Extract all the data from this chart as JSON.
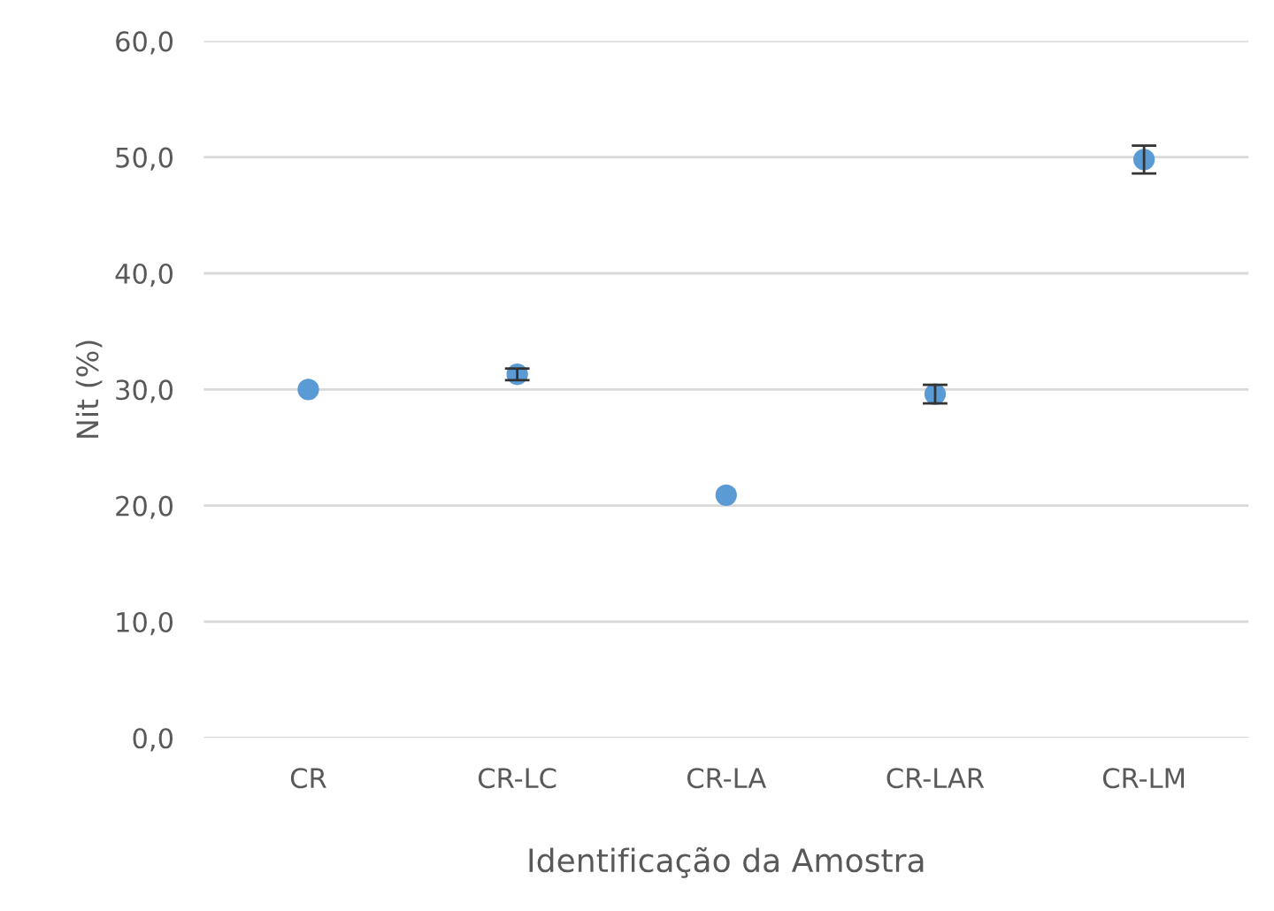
{
  "chart_data": {
    "type": "scatter",
    "xlabel": "Identificação da Amostra",
    "ylabel": "Nit (%)",
    "categories": [
      "CR",
      "CR-LC",
      "CR-LA",
      "CR-LAR",
      "CR-LM"
    ],
    "series": [
      {
        "color": "#5b9bd5",
        "values": [
          30.0,
          31.3,
          20.9,
          29.6,
          49.8
        ],
        "errors": [
          null,
          0.5,
          null,
          0.8,
          1.2
        ]
      }
    ],
    "ylim": [
      0,
      60
    ],
    "yticks": [
      {
        "value": 0,
        "label": "0,0"
      },
      {
        "value": 10,
        "label": "10,0"
      },
      {
        "value": 20,
        "label": "20,0"
      },
      {
        "value": 30,
        "label": "30,0"
      },
      {
        "value": 40,
        "label": "40,0"
      },
      {
        "value": 50,
        "label": "50,0"
      },
      {
        "value": 60,
        "label": "60,0"
      }
    ],
    "grid": "y",
    "marker": "circle"
  }
}
